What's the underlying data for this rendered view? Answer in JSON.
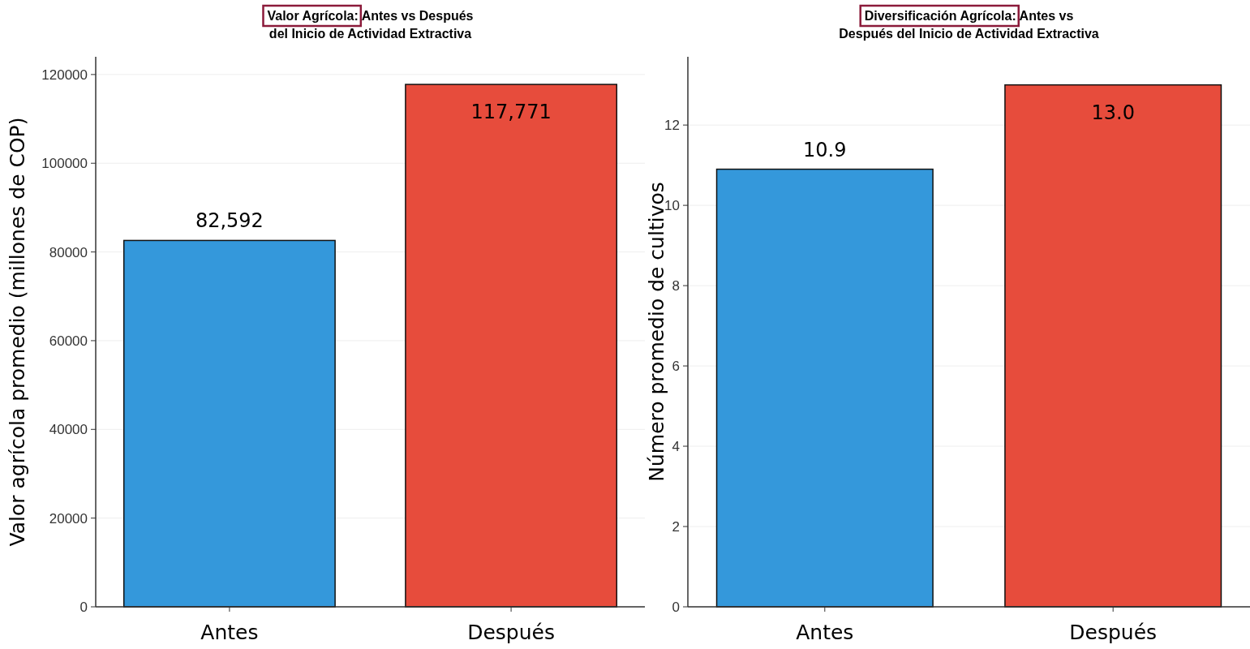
{
  "chart_data": [
    {
      "type": "bar",
      "title": "Valor Agrícola: Antes vs Después\ndel Inicio de Actividad Extractiva",
      "ylabel": "Valor agrícola promedio (millones de COP)",
      "categories": [
        "Antes",
        "Después"
      ],
      "values": [
        82592,
        117771
      ],
      "colors": [
        "#3498db",
        "#e74c3c"
      ],
      "value_labels": [
        "82,592",
        "117,771"
      ],
      "ylim": [
        0,
        124000
      ],
      "yticks": [
        0,
        20000,
        40000,
        60000,
        80000,
        100000,
        120000
      ],
      "grid": "y"
    },
    {
      "type": "bar",
      "title": "Diversificación Agrícola: Antes vs\nDespués del Inicio de Actividad Extractiva",
      "ylabel": "Número promedio de cultivos",
      "categories": [
        "Antes",
        "Después"
      ],
      "values": [
        10.9,
        13.0
      ],
      "colors": [
        "#3498db",
        "#e74c3c"
      ],
      "value_labels": [
        "10.9",
        "13.0"
      ],
      "ylim": [
        0,
        13.7
      ],
      "yticks": [
        0,
        2,
        4,
        6,
        8,
        10,
        12
      ],
      "grid": "y"
    }
  ]
}
